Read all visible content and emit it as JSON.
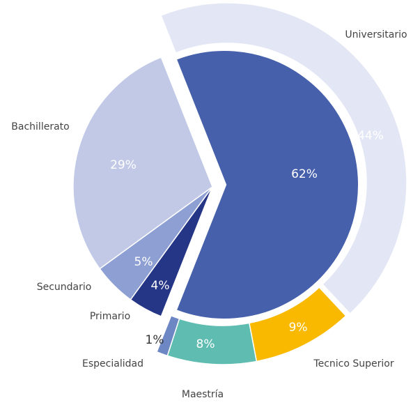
{
  "chart_data": {
    "type": "pie",
    "rings": [
      {
        "categories": [
          null,
          "Primario",
          "Secundario",
          "Bachillerato"
        ],
        "values": [
          62,
          4,
          5,
          29
        ],
        "value_labels": [
          "62%",
          "4%",
          "5%",
          "29%"
        ],
        "colors": [
          "#4660ab",
          "#263686",
          "#8e9fd3",
          "#c1c9e6"
        ]
      },
      {
        "categories": [
          "Universitario",
          "Tecnico Superior",
          "Maestría",
          "Especialidad"
        ],
        "values": [
          44,
          9,
          8,
          1
        ],
        "value_labels": [
          "44%",
          "9%",
          "8%",
          "1%"
        ],
        "colors": [
          "#e3e7f5",
          "#f9b900",
          "#5fbcb0",
          "#6d87c4"
        ]
      }
    ]
  }
}
